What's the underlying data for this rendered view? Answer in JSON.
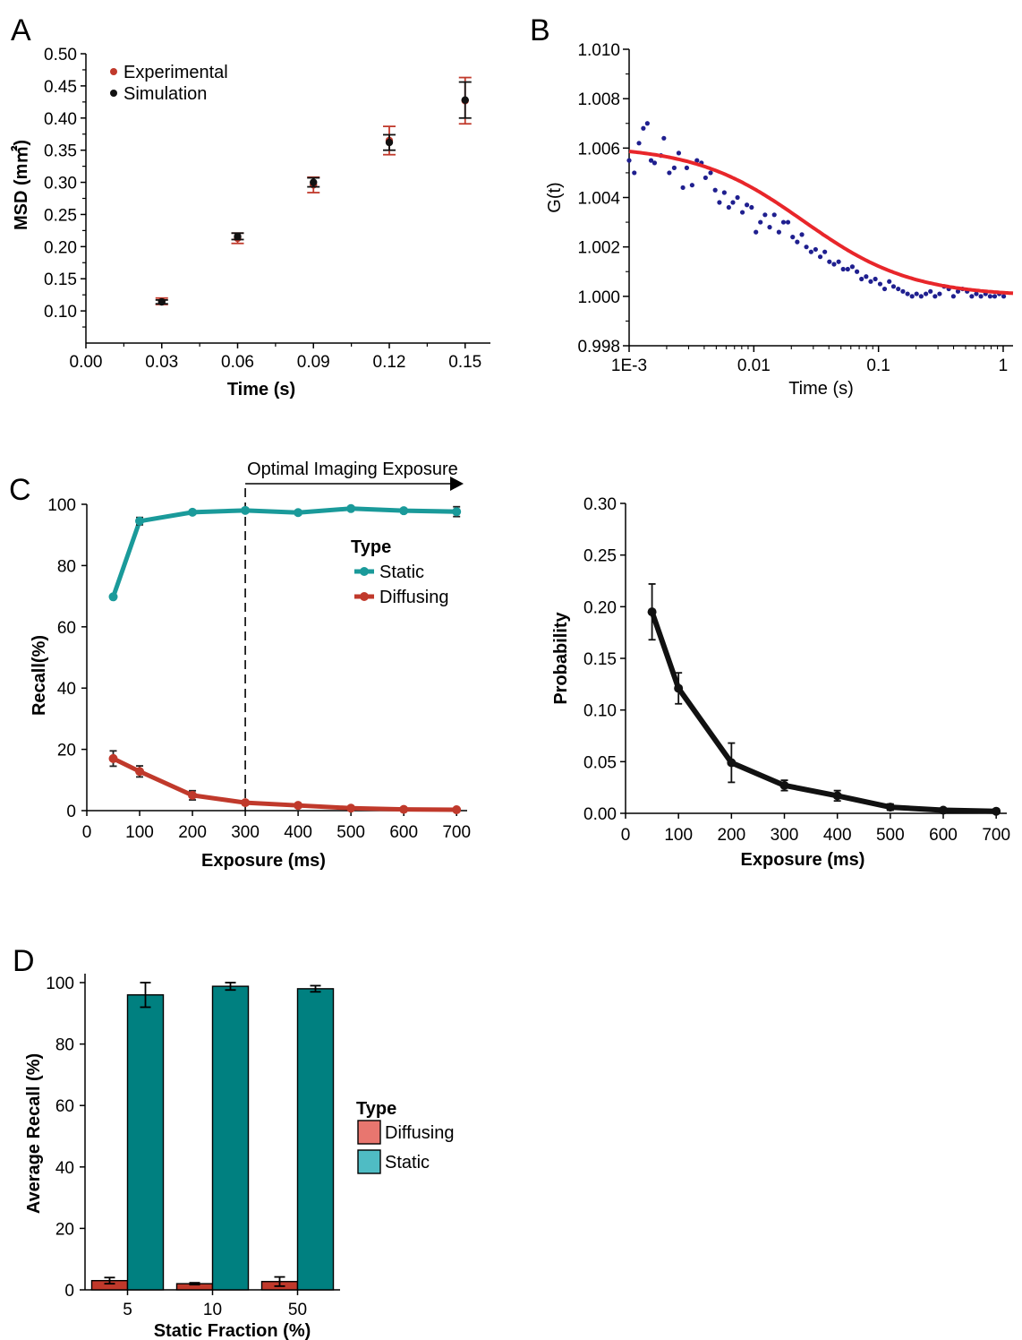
{
  "chart_data": [
    {
      "panel": "A",
      "type": "scatter",
      "xlabel": "Time (s)",
      "ylabel": "MSD (m㎡)",
      "xlim": [
        0.0,
        0.16
      ],
      "ylim": [
        0.05,
        0.5
      ],
      "xticks": [
        "0.00",
        "0.03",
        "0.06",
        "0.09",
        "0.12",
        "0.15"
      ],
      "yticks": [
        "0.10",
        "0.15",
        "0.20",
        "0.25",
        "0.30",
        "0.35",
        "0.40",
        "0.45",
        "0.50"
      ],
      "legend": "top-left",
      "colors": {
        "Experimental": "#c0392b",
        "Simulation": "#111111"
      },
      "series": [
        {
          "name": "Experimental",
          "x": [
            0.03,
            0.06,
            0.09,
            0.12,
            0.15
          ],
          "y": [
            0.115,
            0.213,
            0.296,
            0.365,
            0.427
          ],
          "err": [
            0.005,
            0.008,
            0.012,
            0.022,
            0.036
          ]
        },
        {
          "name": "Simulation",
          "x": [
            0.03,
            0.06,
            0.09,
            0.12,
            0.15
          ],
          "y": [
            0.114,
            0.216,
            0.3,
            0.362,
            0.428
          ],
          "err": [
            0.003,
            0.005,
            0.007,
            0.012,
            0.028
          ]
        }
      ]
    },
    {
      "panel": "B",
      "type": "scatter",
      "xlabel": "Time (s)",
      "ylabel": "G(t)",
      "xscale": "log",
      "xlim": [
        0.001,
        1.2
      ],
      "ylim": [
        0.998,
        1.01
      ],
      "xticks": [
        "1E-3",
        "0.01",
        "0.1",
        "1"
      ],
      "yticks": [
        "0.998",
        "1.000",
        "1.002",
        "1.004",
        "1.006",
        "1.008",
        "1.010"
      ],
      "fit_color": "#e8262a",
      "point_color": "#1f1f8f",
      "fit": {
        "G0": 1.0,
        "amplitude": 0.0061,
        "tau": 0.025
      },
      "points": {
        "x": [
          0.001,
          0.0011,
          0.0012,
          0.0013,
          0.0014,
          0.0015,
          0.0016,
          0.0018,
          0.0019,
          0.0021,
          0.0023,
          0.0025,
          0.0027,
          0.0029,
          0.0032,
          0.0035,
          0.0038,
          0.0041,
          0.0045,
          0.0049,
          0.0053,
          0.0058,
          0.0063,
          0.0068,
          0.0074,
          0.0081,
          0.0088,
          0.0096,
          0.0104,
          0.0113,
          0.0123,
          0.0134,
          0.0146,
          0.0159,
          0.0173,
          0.0188,
          0.0205,
          0.0223,
          0.0243,
          0.0264,
          0.0288,
          0.0313,
          0.0341,
          0.0371,
          0.0404,
          0.044,
          0.0479,
          0.0521,
          0.0567,
          0.0617,
          0.0672,
          0.0731,
          0.0796,
          0.0866,
          0.0943,
          0.103,
          0.112,
          0.122,
          0.132,
          0.144,
          0.157,
          0.171,
          0.186,
          0.202,
          0.22,
          0.24,
          0.261,
          0.284,
          0.309,
          0.336,
          0.366,
          0.399,
          0.434,
          0.472,
          0.514,
          0.56,
          0.609,
          0.663,
          0.722,
          0.786,
          0.855,
          0.931,
          1.01
        ],
        "y": [
          1.0055,
          1.005,
          1.0062,
          1.0068,
          1.007,
          1.0055,
          1.0054,
          1.0057,
          1.0064,
          1.005,
          1.0052,
          1.0058,
          1.0044,
          1.0052,
          1.0045,
          1.0055,
          1.0054,
          1.0048,
          1.005,
          1.0043,
          1.0038,
          1.0042,
          1.0036,
          1.0038,
          1.004,
          1.0034,
          1.0037,
          1.0036,
          1.0026,
          1.003,
          1.0033,
          1.0028,
          1.0033,
          1.0026,
          1.003,
          1.003,
          1.0024,
          1.0022,
          1.0025,
          1.002,
          1.0018,
          1.0019,
          1.0016,
          1.0018,
          1.0014,
          1.0013,
          1.0014,
          1.0011,
          1.0011,
          1.0012,
          1.001,
          1.0007,
          1.0008,
          1.0006,
          1.0007,
          1.0005,
          1.0003,
          1.0006,
          1.0004,
          1.0003,
          1.0002,
          1.0001,
          1.0,
          1.0001,
          1.0,
          1.0001,
          1.0002,
          1.0,
          1.0001,
          1.0004,
          1.0003,
          1.0,
          1.0002,
          1.0003,
          1.0002,
          1.0,
          1.0001,
          1.0,
          1.0001,
          1.0,
          1.0,
          1.0001,
          1.0
        ]
      }
    },
    {
      "panel": "C",
      "type": "line",
      "xlabel": "Exposure (ms)",
      "ylabel": "Recall(%)",
      "xlim": [
        0,
        720
      ],
      "ylim": [
        0,
        100
      ],
      "xticks": [
        "0",
        "100",
        "200",
        "300",
        "400",
        "500",
        "600",
        "700"
      ],
      "yticks": [
        "0",
        "20",
        "40",
        "60",
        "80",
        "100"
      ],
      "legend_title": "Type",
      "legend": "right",
      "annotation": "Optimal Imaging Exposure",
      "annotation_x": 300,
      "series": [
        {
          "name": "Static",
          "color": "#1a9a9a",
          "x": [
            50,
            100,
            200,
            300,
            400,
            500,
            600,
            700
          ],
          "y": [
            69.8,
            94.5,
            97.4,
            98.0,
            97.3,
            98.6,
            97.9,
            97.6
          ],
          "err": [
            0.6,
            1.2,
            0.6,
            0.5,
            0.6,
            0.5,
            0.6,
            1.6
          ]
        },
        {
          "name": "Diffusing",
          "color": "#c0392b",
          "x": [
            50,
            100,
            200,
            300,
            400,
            500,
            600,
            700
          ],
          "y": [
            17.0,
            12.8,
            5.0,
            2.6,
            1.7,
            0.8,
            0.4,
            0.3
          ],
          "err": [
            2.5,
            1.8,
            1.5,
            0.6,
            0.5,
            0.4,
            0.3,
            0.2
          ]
        }
      ]
    },
    {
      "panel": "C-right",
      "type": "line",
      "xlabel": "Exposure (ms)",
      "ylabel": "Probability",
      "xlim": [
        0,
        720
      ],
      "ylim": [
        0,
        0.3
      ],
      "xticks": [
        "0",
        "100",
        "200",
        "300",
        "400",
        "500",
        "600",
        "700"
      ],
      "yticks": [
        "0.00",
        "0.05",
        "0.10",
        "0.15",
        "0.20",
        "0.25",
        "0.30"
      ],
      "series": [
        {
          "color": "#111111",
          "x": [
            50,
            100,
            200,
            300,
            400,
            500,
            600,
            700
          ],
          "y": [
            0.195,
            0.121,
            0.049,
            0.027,
            0.017,
            0.006,
            0.003,
            0.002
          ],
          "err": [
            0.027,
            0.015,
            0.019,
            0.005,
            0.005,
            0.003,
            0.001,
            0.001
          ]
        }
      ]
    },
    {
      "panel": "D",
      "type": "bar",
      "xlabel": "Static Fraction (%)",
      "ylabel": "Average Recall (%)",
      "categories": [
        "5",
        "10",
        "50"
      ],
      "ylim": [
        0,
        100
      ],
      "yticks": [
        "0",
        "20",
        "40",
        "60",
        "80",
        "100"
      ],
      "legend_title": "Type",
      "legend": "right",
      "series": [
        {
          "name": "Diffusing",
          "color": "#c0392b",
          "legend_color": "#e8766f",
          "values": [
            3.0,
            2.0,
            2.7
          ],
          "err": [
            1.0,
            0.3,
            1.5
          ]
        },
        {
          "name": "Static",
          "color": "#008080",
          "legend_color": "#4fbcc4",
          "values": [
            96.0,
            98.8,
            98.0
          ],
          "err": [
            4.0,
            1.2,
            1.0
          ]
        }
      ]
    }
  ],
  "panels": {
    "a": "A",
    "b": "B",
    "c": "C",
    "d": "D"
  }
}
